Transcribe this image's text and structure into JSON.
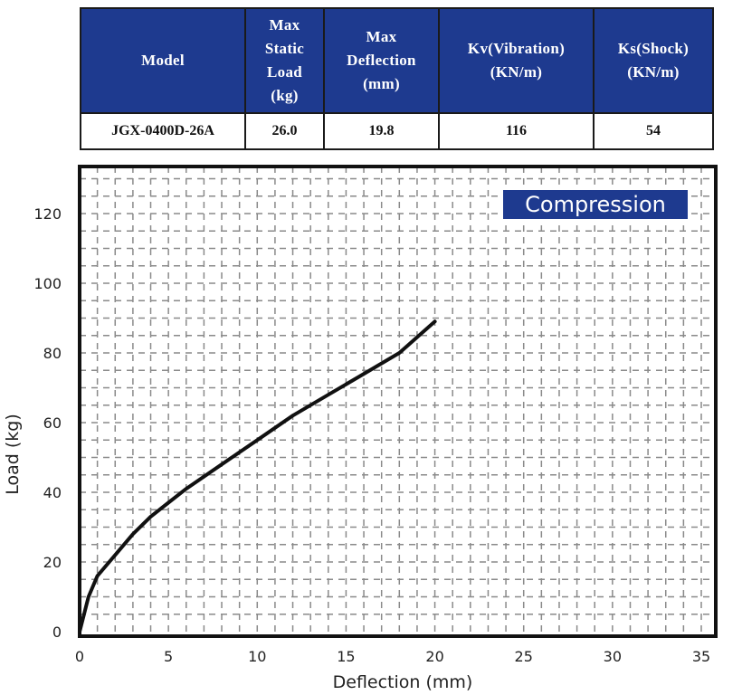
{
  "table": {
    "headers": [
      [
        "Model"
      ],
      [
        "Max",
        "Static",
        "Load",
        "(kg)"
      ],
      [
        "Max",
        "Deflection",
        "(mm)"
      ],
      [
        "Kv(Vibration)",
        "(KN/m)"
      ],
      [
        "Ks(Shock)",
        "(KN/m)"
      ]
    ],
    "row": [
      "JGX-0400D-26A",
      "26.0",
      "19.8",
      "116",
      "54"
    ]
  },
  "chart_data": {
    "type": "line",
    "title": "",
    "legend": "Compression",
    "legend_placement": "top-right",
    "xlabel": "Deflection (mm)",
    "ylabel": "Load (kg)",
    "xlim": [
      0,
      35
    ],
    "ylim": [
      0,
      130
    ],
    "xticks": [
      0,
      5,
      10,
      15,
      20,
      25,
      30,
      35
    ],
    "yticks": [
      0,
      20,
      40,
      60,
      80,
      100,
      120
    ],
    "grid": true,
    "series": [
      {
        "name": "Compression",
        "color": "#111111",
        "x": [
          0,
          0.5,
          1,
          2,
          3,
          4,
          5,
          6,
          8,
          10,
          12,
          14,
          16,
          18,
          20
        ],
        "y": [
          0,
          10,
          16,
          22,
          28,
          33,
          37,
          41,
          48,
          55,
          62,
          68,
          74,
          80,
          89
        ]
      }
    ]
  }
}
